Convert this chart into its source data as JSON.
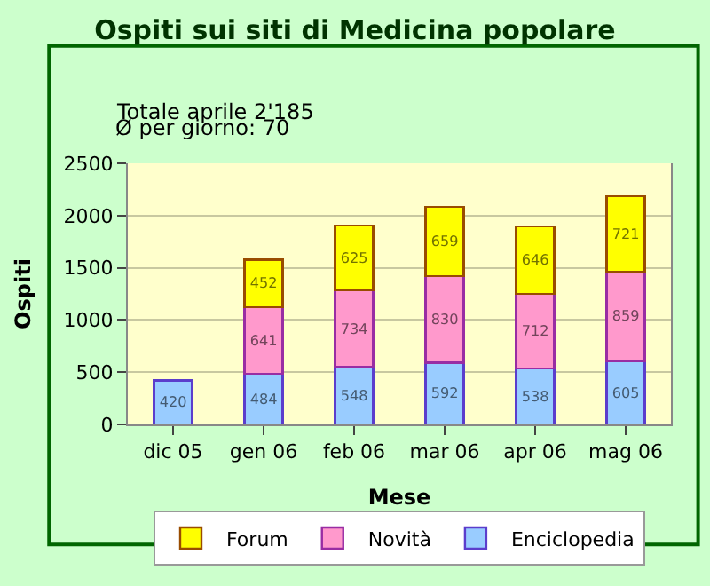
{
  "chart_data": {
    "type": "bar",
    "stacked": true,
    "title": "Ospiti sui siti di Medicina popolare",
    "annotations": [
      "Totale aprile 2'185",
      "Ø per giorno: 70"
    ],
    "xlabel": "Mese",
    "ylabel": "Ospiti",
    "categories": [
      "dic 05",
      "gen 06",
      "feb 06",
      "mar 06",
      "apr 06",
      "mag 06"
    ],
    "series": [
      {
        "name": "Enciclopedia",
        "color": "#99ccff",
        "values": [
          420,
          484,
          548,
          592,
          538,
          605
        ]
      },
      {
        "name": "Novità",
        "color": "#ff99cc",
        "values": [
          null,
          641,
          734,
          830,
          712,
          859
        ]
      },
      {
        "name": "Forum",
        "color": "#ffff00",
        "values": [
          null,
          452,
          625,
          659,
          646,
          721
        ]
      }
    ],
    "ylim": [
      0,
      2500
    ],
    "yticks": [
      0,
      500,
      1000,
      1500,
      2000,
      2500
    ],
    "grid": "y",
    "legend": "bottom",
    "data_labels": true
  }
}
